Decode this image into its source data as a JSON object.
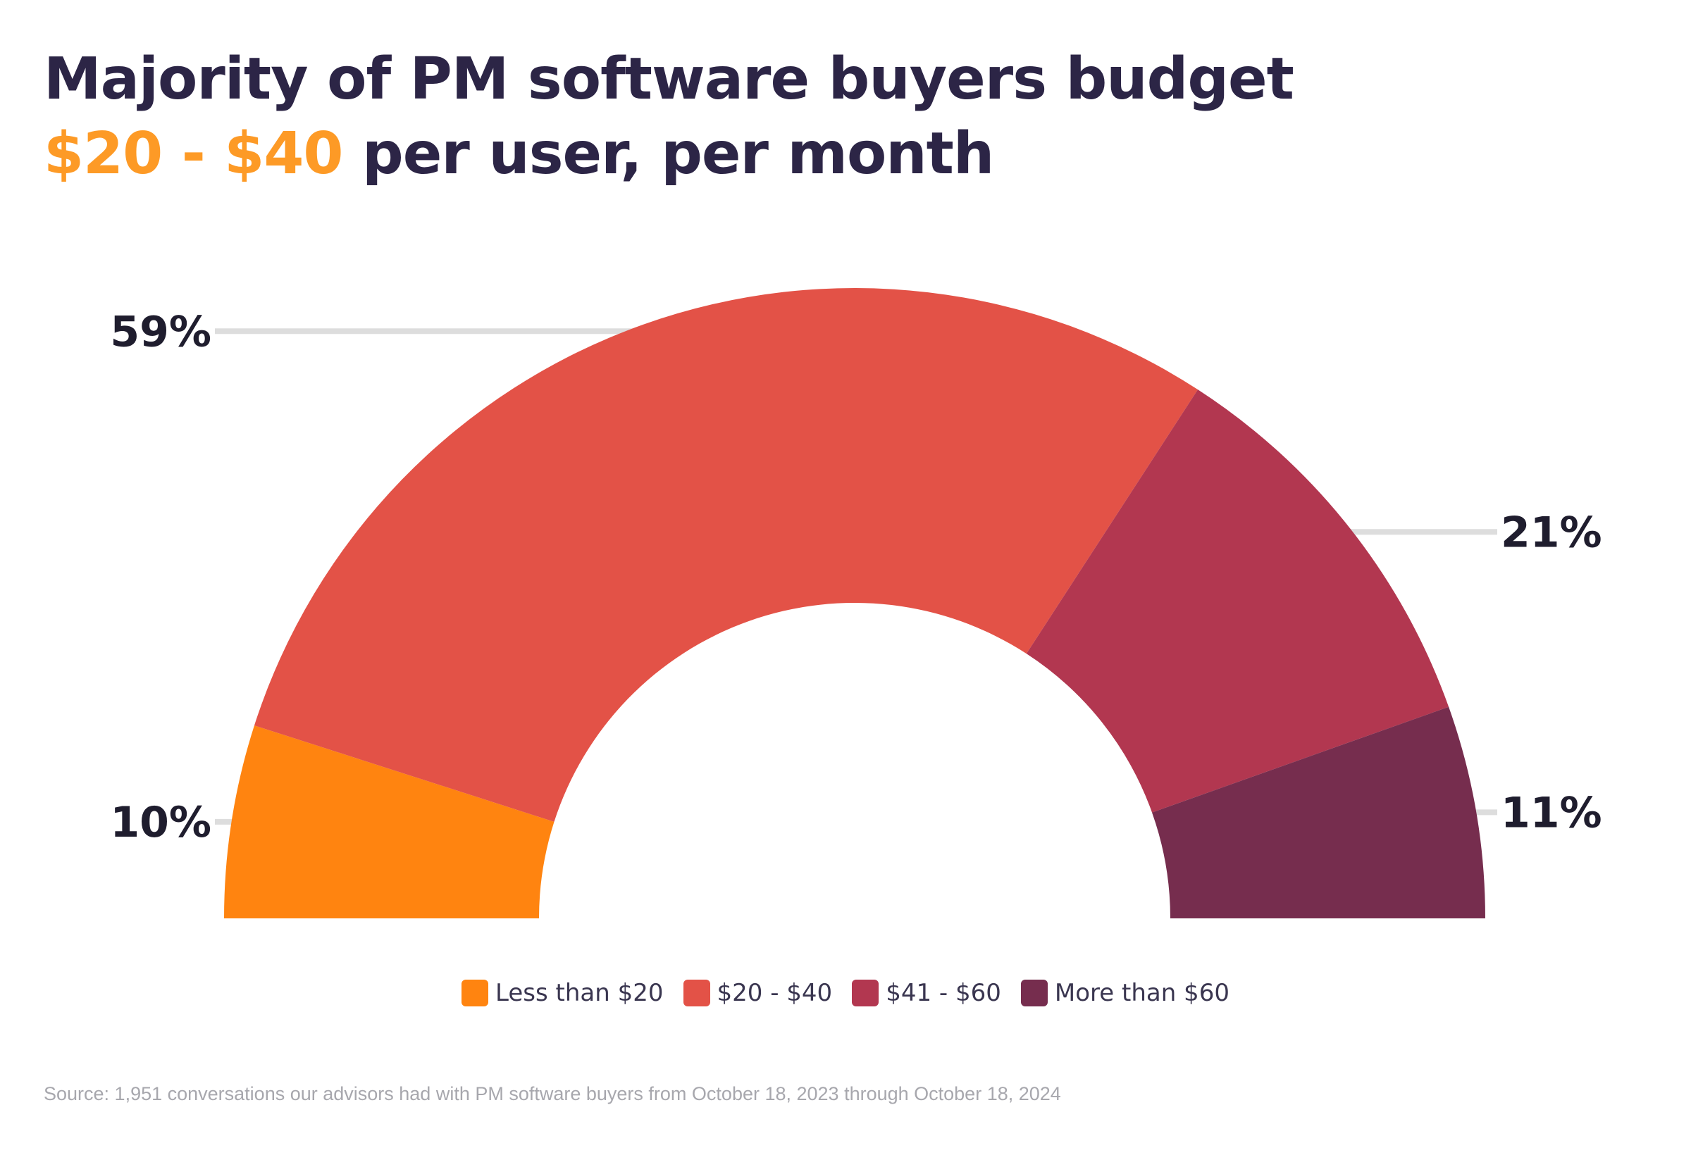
{
  "title": {
    "line1": "Majority of PM software buyers budget",
    "line2_highlight": "$20 - $40",
    "line2_rest": " per user, per month"
  },
  "chart_data": {
    "type": "pie",
    "variant": "semi-donut",
    "title": "Majority of PM software buyers budget $20 - $40 per user, per month",
    "categories": [
      "Less than $20",
      "$20 - $40",
      "$41 - $60",
      "More than $60"
    ],
    "values": [
      10,
      59,
      21,
      11
    ],
    "labels": [
      "10%",
      "59%",
      "21%",
      "11%"
    ],
    "label_sides": [
      "left",
      "left",
      "right",
      "right"
    ],
    "colors": [
      "#ff8410",
      "#e35247",
      "#b23750",
      "#762d4e"
    ],
    "leader_color": "#dddddd",
    "legend_position": "bottom-center"
  },
  "source": "Source: 1,951 conversations our advisors had with PM software buyers from October 18, 2023 through October 18, 2024"
}
